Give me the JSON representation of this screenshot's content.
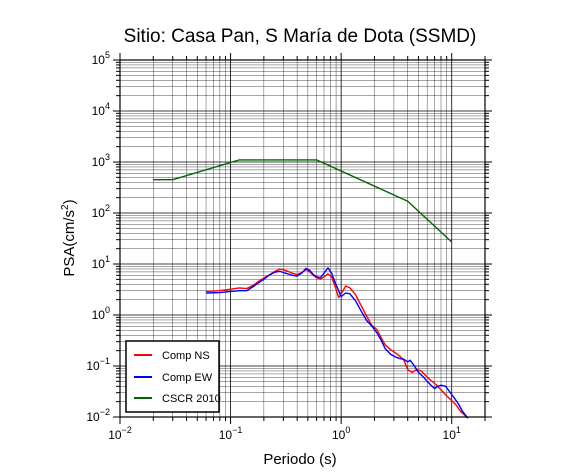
{
  "chart_data": {
    "type": "line",
    "title": "Sitio: Casa Pan, S María de Dota (SSMD)",
    "xlabel": "Periodo (s)",
    "ylabel_main": "PSA(cm/s",
    "ylabel_sup": "2",
    "ylabel_close": ")",
    "x_scale": "log",
    "y_scale": "log",
    "xlim": [
      0.01,
      20
    ],
    "ylim": [
      0.01,
      100000
    ],
    "grid": true,
    "legend_position": "bottom-left",
    "x_ticks": [
      {
        "value": 0.01,
        "base": "10",
        "exp": "−2"
      },
      {
        "value": 0.1,
        "base": "10",
        "exp": "−1"
      },
      {
        "value": 1,
        "base": "10",
        "exp": "0"
      },
      {
        "value": 10,
        "base": "10",
        "exp": "1"
      }
    ],
    "y_ticks": [
      {
        "value": 0.01,
        "base": "10",
        "exp": "−2"
      },
      {
        "value": 0.1,
        "base": "10",
        "exp": "−1"
      },
      {
        "value": 1,
        "base": "10",
        "exp": "0"
      },
      {
        "value": 10,
        "base": "10",
        "exp": "1"
      },
      {
        "value": 100,
        "base": "10",
        "exp": "2"
      },
      {
        "value": 1000,
        "base": "10",
        "exp": "3"
      },
      {
        "value": 10000,
        "base": "10",
        "exp": "4"
      },
      {
        "value": 100000,
        "base": "10",
        "exp": "5"
      }
    ],
    "series": [
      {
        "name": "Comp NS",
        "color": "#ff0000",
        "points": [
          [
            0.06,
            2.9
          ],
          [
            0.08,
            3.0
          ],
          [
            0.1,
            3.2
          ],
          [
            0.12,
            3.4
          ],
          [
            0.14,
            3.3
          ],
          [
            0.16,
            3.8
          ],
          [
            0.18,
            4.6
          ],
          [
            0.2,
            5.3
          ],
          [
            0.22,
            6.0
          ],
          [
            0.25,
            7.1
          ],
          [
            0.28,
            8.0
          ],
          [
            0.3,
            7.7
          ],
          [
            0.33,
            7.2
          ],
          [
            0.36,
            6.6
          ],
          [
            0.4,
            6.2
          ],
          [
            0.44,
            6.8
          ],
          [
            0.48,
            7.8
          ],
          [
            0.52,
            7.0
          ],
          [
            0.56,
            6.0
          ],
          [
            0.6,
            5.4
          ],
          [
            0.65,
            5.0
          ],
          [
            0.7,
            5.6
          ],
          [
            0.76,
            6.4
          ],
          [
            0.82,
            5.6
          ],
          [
            0.9,
            3.2
          ],
          [
            0.95,
            2.2
          ],
          [
            1.0,
            2.6
          ],
          [
            1.1,
            3.7
          ],
          [
            1.2,
            3.4
          ],
          [
            1.35,
            2.5
          ],
          [
            1.5,
            1.6
          ],
          [
            1.7,
            0.95
          ],
          [
            1.9,
            0.62
          ],
          [
            2.1,
            0.52
          ],
          [
            2.3,
            0.36
          ],
          [
            2.5,
            0.26
          ],
          [
            2.8,
            0.21
          ],
          [
            3.1,
            0.18
          ],
          [
            3.4,
            0.155
          ],
          [
            3.7,
            0.13
          ],
          [
            4.0,
            0.085
          ],
          [
            4.4,
            0.075
          ],
          [
            4.8,
            0.085
          ],
          [
            5.3,
            0.08
          ],
          [
            5.8,
            0.065
          ],
          [
            6.3,
            0.055
          ],
          [
            6.8,
            0.048
          ],
          [
            7.3,
            0.042
          ],
          [
            8.0,
            0.034
          ],
          [
            9.0,
            0.026
          ],
          [
            10.0,
            0.021
          ],
          [
            11.0,
            0.017
          ],
          [
            12.0,
            0.013
          ],
          [
            13.0,
            0.011
          ],
          [
            14.0,
            0.0095
          ]
        ]
      },
      {
        "name": "Comp EW",
        "color": "#0000ff",
        "points": [
          [
            0.06,
            2.7
          ],
          [
            0.08,
            2.75
          ],
          [
            0.1,
            2.9
          ],
          [
            0.12,
            3.0
          ],
          [
            0.14,
            3.0
          ],
          [
            0.16,
            3.6
          ],
          [
            0.18,
            4.3
          ],
          [
            0.2,
            5.0
          ],
          [
            0.22,
            5.9
          ],
          [
            0.25,
            6.9
          ],
          [
            0.28,
            7.2
          ],
          [
            0.3,
            6.8
          ],
          [
            0.33,
            6.4
          ],
          [
            0.36,
            6.0
          ],
          [
            0.4,
            5.8
          ],
          [
            0.44,
            6.6
          ],
          [
            0.48,
            8.2
          ],
          [
            0.52,
            7.5
          ],
          [
            0.56,
            6.2
          ],
          [
            0.6,
            5.6
          ],
          [
            0.65,
            5.4
          ],
          [
            0.7,
            6.6
          ],
          [
            0.76,
            8.4
          ],
          [
            0.82,
            6.6
          ],
          [
            0.9,
            3.9
          ],
          [
            0.95,
            3.0
          ],
          [
            1.0,
            2.3
          ],
          [
            1.1,
            2.7
          ],
          [
            1.2,
            2.6
          ],
          [
            1.35,
            1.9
          ],
          [
            1.5,
            1.25
          ],
          [
            1.7,
            0.78
          ],
          [
            1.9,
            0.6
          ],
          [
            2.1,
            0.45
          ],
          [
            2.3,
            0.32
          ],
          [
            2.5,
            0.22
          ],
          [
            2.8,
            0.17
          ],
          [
            3.1,
            0.15
          ],
          [
            3.4,
            0.14
          ],
          [
            3.7,
            0.135
          ],
          [
            4.0,
            0.12
          ],
          [
            4.2,
            0.13
          ],
          [
            4.6,
            0.1
          ],
          [
            5.0,
            0.075
          ],
          [
            5.5,
            0.062
          ],
          [
            6.0,
            0.05
          ],
          [
            6.5,
            0.042
          ],
          [
            7.0,
            0.036
          ],
          [
            7.5,
            0.04
          ],
          [
            8.0,
            0.042
          ],
          [
            8.8,
            0.04
          ],
          [
            9.5,
            0.032
          ],
          [
            10.5,
            0.024
          ],
          [
            11.5,
            0.018
          ],
          [
            12.5,
            0.013
          ],
          [
            14.0,
            0.0095
          ]
        ]
      },
      {
        "name": "CSCR 2010",
        "color": "#006400",
        "points": [
          [
            0.02,
            450
          ],
          [
            0.03,
            450
          ],
          [
            0.12,
            1100
          ],
          [
            0.6,
            1100
          ],
          [
            4.0,
            170
          ],
          [
            10.0,
            27
          ]
        ]
      }
    ]
  }
}
